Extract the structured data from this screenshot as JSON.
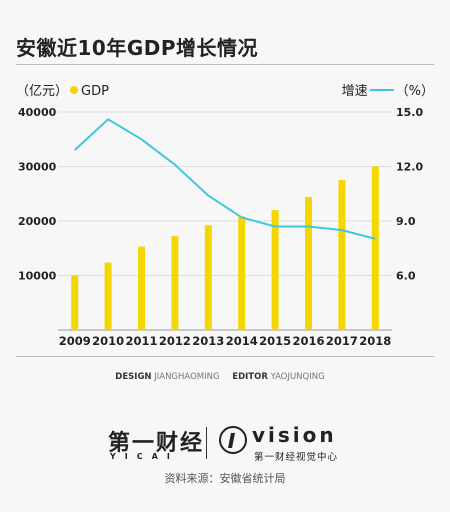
{
  "title": "安徽近10年GDP增长情况",
  "legend": {
    "left_unit": "（亿元）",
    "left_series": "GDP",
    "right_series": "增速",
    "right_unit": "（%）"
  },
  "credits": {
    "design_label": "DESIGN",
    "design_name": "JIANGHAOMING",
    "editor_label": "EDITOR",
    "editor_name": "YAOJUNQING"
  },
  "brand": {
    "cn": "第一财经",
    "en": "YICAI",
    "vision": "vision",
    "vision_sub": "第一财经视觉中心"
  },
  "source": "资料来源：安徽省统计局",
  "colors": {
    "bar": "#f5d700",
    "line": "#3fc7dd",
    "background": "#f7f7f7"
  },
  "chart_data": {
    "type": "bar",
    "categories": [
      "2009",
      "2010",
      "2011",
      "2012",
      "2013",
      "2014",
      "2015",
      "2016",
      "2017",
      "2018"
    ],
    "series": [
      {
        "name": "GDP",
        "type": "bar",
        "axis": "left",
        "values": [
          10063,
          12359,
          15301,
          17212,
          19229,
          20849,
          22006,
          24408,
          27518,
          30007
        ]
      },
      {
        "name": "增速",
        "type": "line",
        "axis": "right",
        "values": [
          12.9,
          14.6,
          13.5,
          12.1,
          10.4,
          9.2,
          8.7,
          8.7,
          8.5,
          8.02
        ]
      }
    ],
    "y_left": {
      "ylim": [
        0,
        40000
      ],
      "ticks": [
        "10000",
        "20000",
        "30000",
        "40000"
      ],
      "tick_values": [
        10000,
        20000,
        30000,
        40000
      ]
    },
    "y_right": {
      "ylim": [
        3.0,
        15.0
      ],
      "ticks": [
        "6.0",
        "9.0",
        "12.0",
        "15.0"
      ],
      "tick_values": [
        6.0,
        9.0,
        12.0,
        15.0
      ]
    },
    "grid": true
  }
}
